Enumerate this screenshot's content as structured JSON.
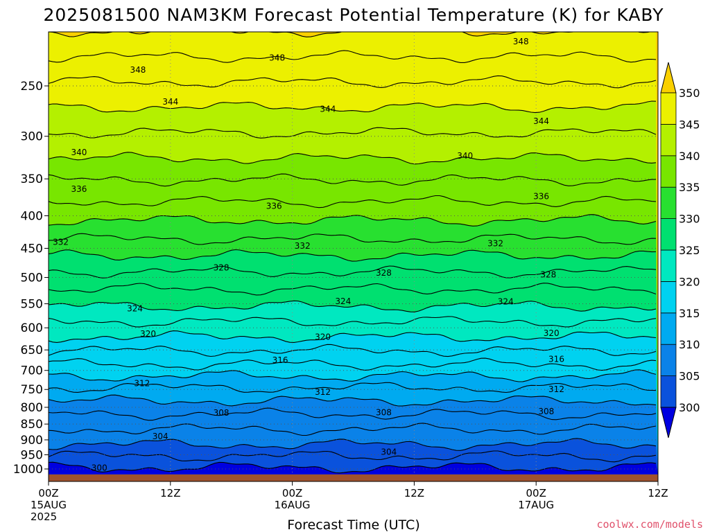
{
  "title": "2025081500 NAM3KM Forecast Potential Temperature (K) for KABY",
  "credit": "coolwx.com/models",
  "colors": {
    "ground": "#a0522d",
    "contour": "#000000",
    "grid": "#555555"
  },
  "chart_data": {
    "type": "contour",
    "title": "2025081500 NAM3KM Forecast Potential Temperature (K) for KABY",
    "xlabel": "Forecast Time (UTC)",
    "ylabel": "",
    "x_unit": "forecast hour",
    "xlim": [
      0,
      60
    ],
    "y_unit": "pressure (hPa)",
    "ylim": [
      1020,
      200
    ],
    "y_scale": "log",
    "grid": true,
    "x_ticks": [
      {
        "hour": 0,
        "lines": [
          "00Z",
          "15AUG",
          "2025"
        ]
      },
      {
        "hour": 12,
        "lines": [
          "12Z"
        ]
      },
      {
        "hour": 24,
        "lines": [
          "00Z",
          "16AUG"
        ]
      },
      {
        "hour": 36,
        "lines": [
          "12Z"
        ]
      },
      {
        "hour": 48,
        "lines": [
          "00Z",
          "17AUG"
        ]
      },
      {
        "hour": 60,
        "lines": [
          "12Z"
        ]
      }
    ],
    "y_ticks": [
      250,
      300,
      350,
      400,
      450,
      500,
      550,
      600,
      650,
      700,
      750,
      800,
      850,
      900,
      950,
      1000
    ],
    "colorbar": {
      "levels": [
        300,
        305,
        310,
        315,
        320,
        325,
        330,
        335,
        340,
        345,
        350
      ],
      "colors": [
        "#0000e0",
        "#0a52dc",
        "#0a82e8",
        "#00aaf0",
        "#00d2f0",
        "#00e8c0",
        "#00e070",
        "#28e030",
        "#78e600",
        "#b4f000",
        "#ecf000",
        "#fad000"
      ],
      "extend": "both"
    },
    "isotherm_pressure_hPa": [
      {
        "theta": 300,
        "p": 995
      },
      {
        "theta": 304,
        "p": 915
      },
      {
        "theta": 308,
        "p": 820
      },
      {
        "theta": 312,
        "p": 745
      },
      {
        "theta": 316,
        "p": 685
      },
      {
        "theta": 320,
        "p": 620
      },
      {
        "theta": 324,
        "p": 555
      },
      {
        "theta": 328,
        "p": 490
      },
      {
        "theta": 332,
        "p": 435
      },
      {
        "theta": 336,
        "p": 380
      },
      {
        "theta": 340,
        "p": 325
      },
      {
        "theta": 344,
        "p": 270
      },
      {
        "theta": 348,
        "p": 225
      }
    ],
    "contour_labels": [
      {
        "hour": 1.2,
        "p": 440,
        "text": "332"
      },
      {
        "hour": 3.0,
        "p": 363,
        "text": "336"
      },
      {
        "hour": 3.0,
        "p": 318,
        "text": "340"
      },
      {
        "hour": 5.0,
        "p": 996,
        "text": "300"
      },
      {
        "hour": 8.8,
        "p": 236,
        "text": "348"
      },
      {
        "hour": 8.5,
        "p": 560,
        "text": "324"
      },
      {
        "hour": 9.8,
        "p": 613,
        "text": "320"
      },
      {
        "hour": 9.2,
        "p": 734,
        "text": "312"
      },
      {
        "hour": 11.0,
        "p": 889,
        "text": "304"
      },
      {
        "hour": 12.0,
        "p": 265,
        "text": "344"
      },
      {
        "hour": 17.0,
        "p": 483,
        "text": "328"
      },
      {
        "hour": 17.0,
        "p": 816,
        "text": "308"
      },
      {
        "hour": 22.2,
        "p": 386,
        "text": "336"
      },
      {
        "hour": 22.5,
        "p": 226,
        "text": "348"
      },
      {
        "hour": 22.8,
        "p": 675,
        "text": "316"
      },
      {
        "hour": 25.0,
        "p": 446,
        "text": "332"
      },
      {
        "hour": 27.0,
        "p": 620,
        "text": "320"
      },
      {
        "hour": 27.0,
        "p": 757,
        "text": "312"
      },
      {
        "hour": 27.5,
        "p": 272,
        "text": "344"
      },
      {
        "hour": 29.0,
        "p": 545,
        "text": "324"
      },
      {
        "hour": 33.0,
        "p": 492,
        "text": "328"
      },
      {
        "hour": 33.0,
        "p": 815,
        "text": "308"
      },
      {
        "hour": 33.5,
        "p": 940,
        "text": "304"
      },
      {
        "hour": 41.0,
        "p": 322,
        "text": "340"
      },
      {
        "hour": 44.0,
        "p": 442,
        "text": "332"
      },
      {
        "hour": 45.0,
        "p": 546,
        "text": "324"
      },
      {
        "hour": 46.5,
        "p": 213,
        "text": "348"
      },
      {
        "hour": 48.5,
        "p": 284,
        "text": "344"
      },
      {
        "hour": 48.5,
        "p": 373,
        "text": "336"
      },
      {
        "hour": 49.2,
        "p": 495,
        "text": "328"
      },
      {
        "hour": 49.5,
        "p": 612,
        "text": "320"
      },
      {
        "hour": 50.0,
        "p": 672,
        "text": "316"
      },
      {
        "hour": 50.0,
        "p": 750,
        "text": "312"
      },
      {
        "hour": 49.0,
        "p": 812,
        "text": "308"
      }
    ]
  }
}
